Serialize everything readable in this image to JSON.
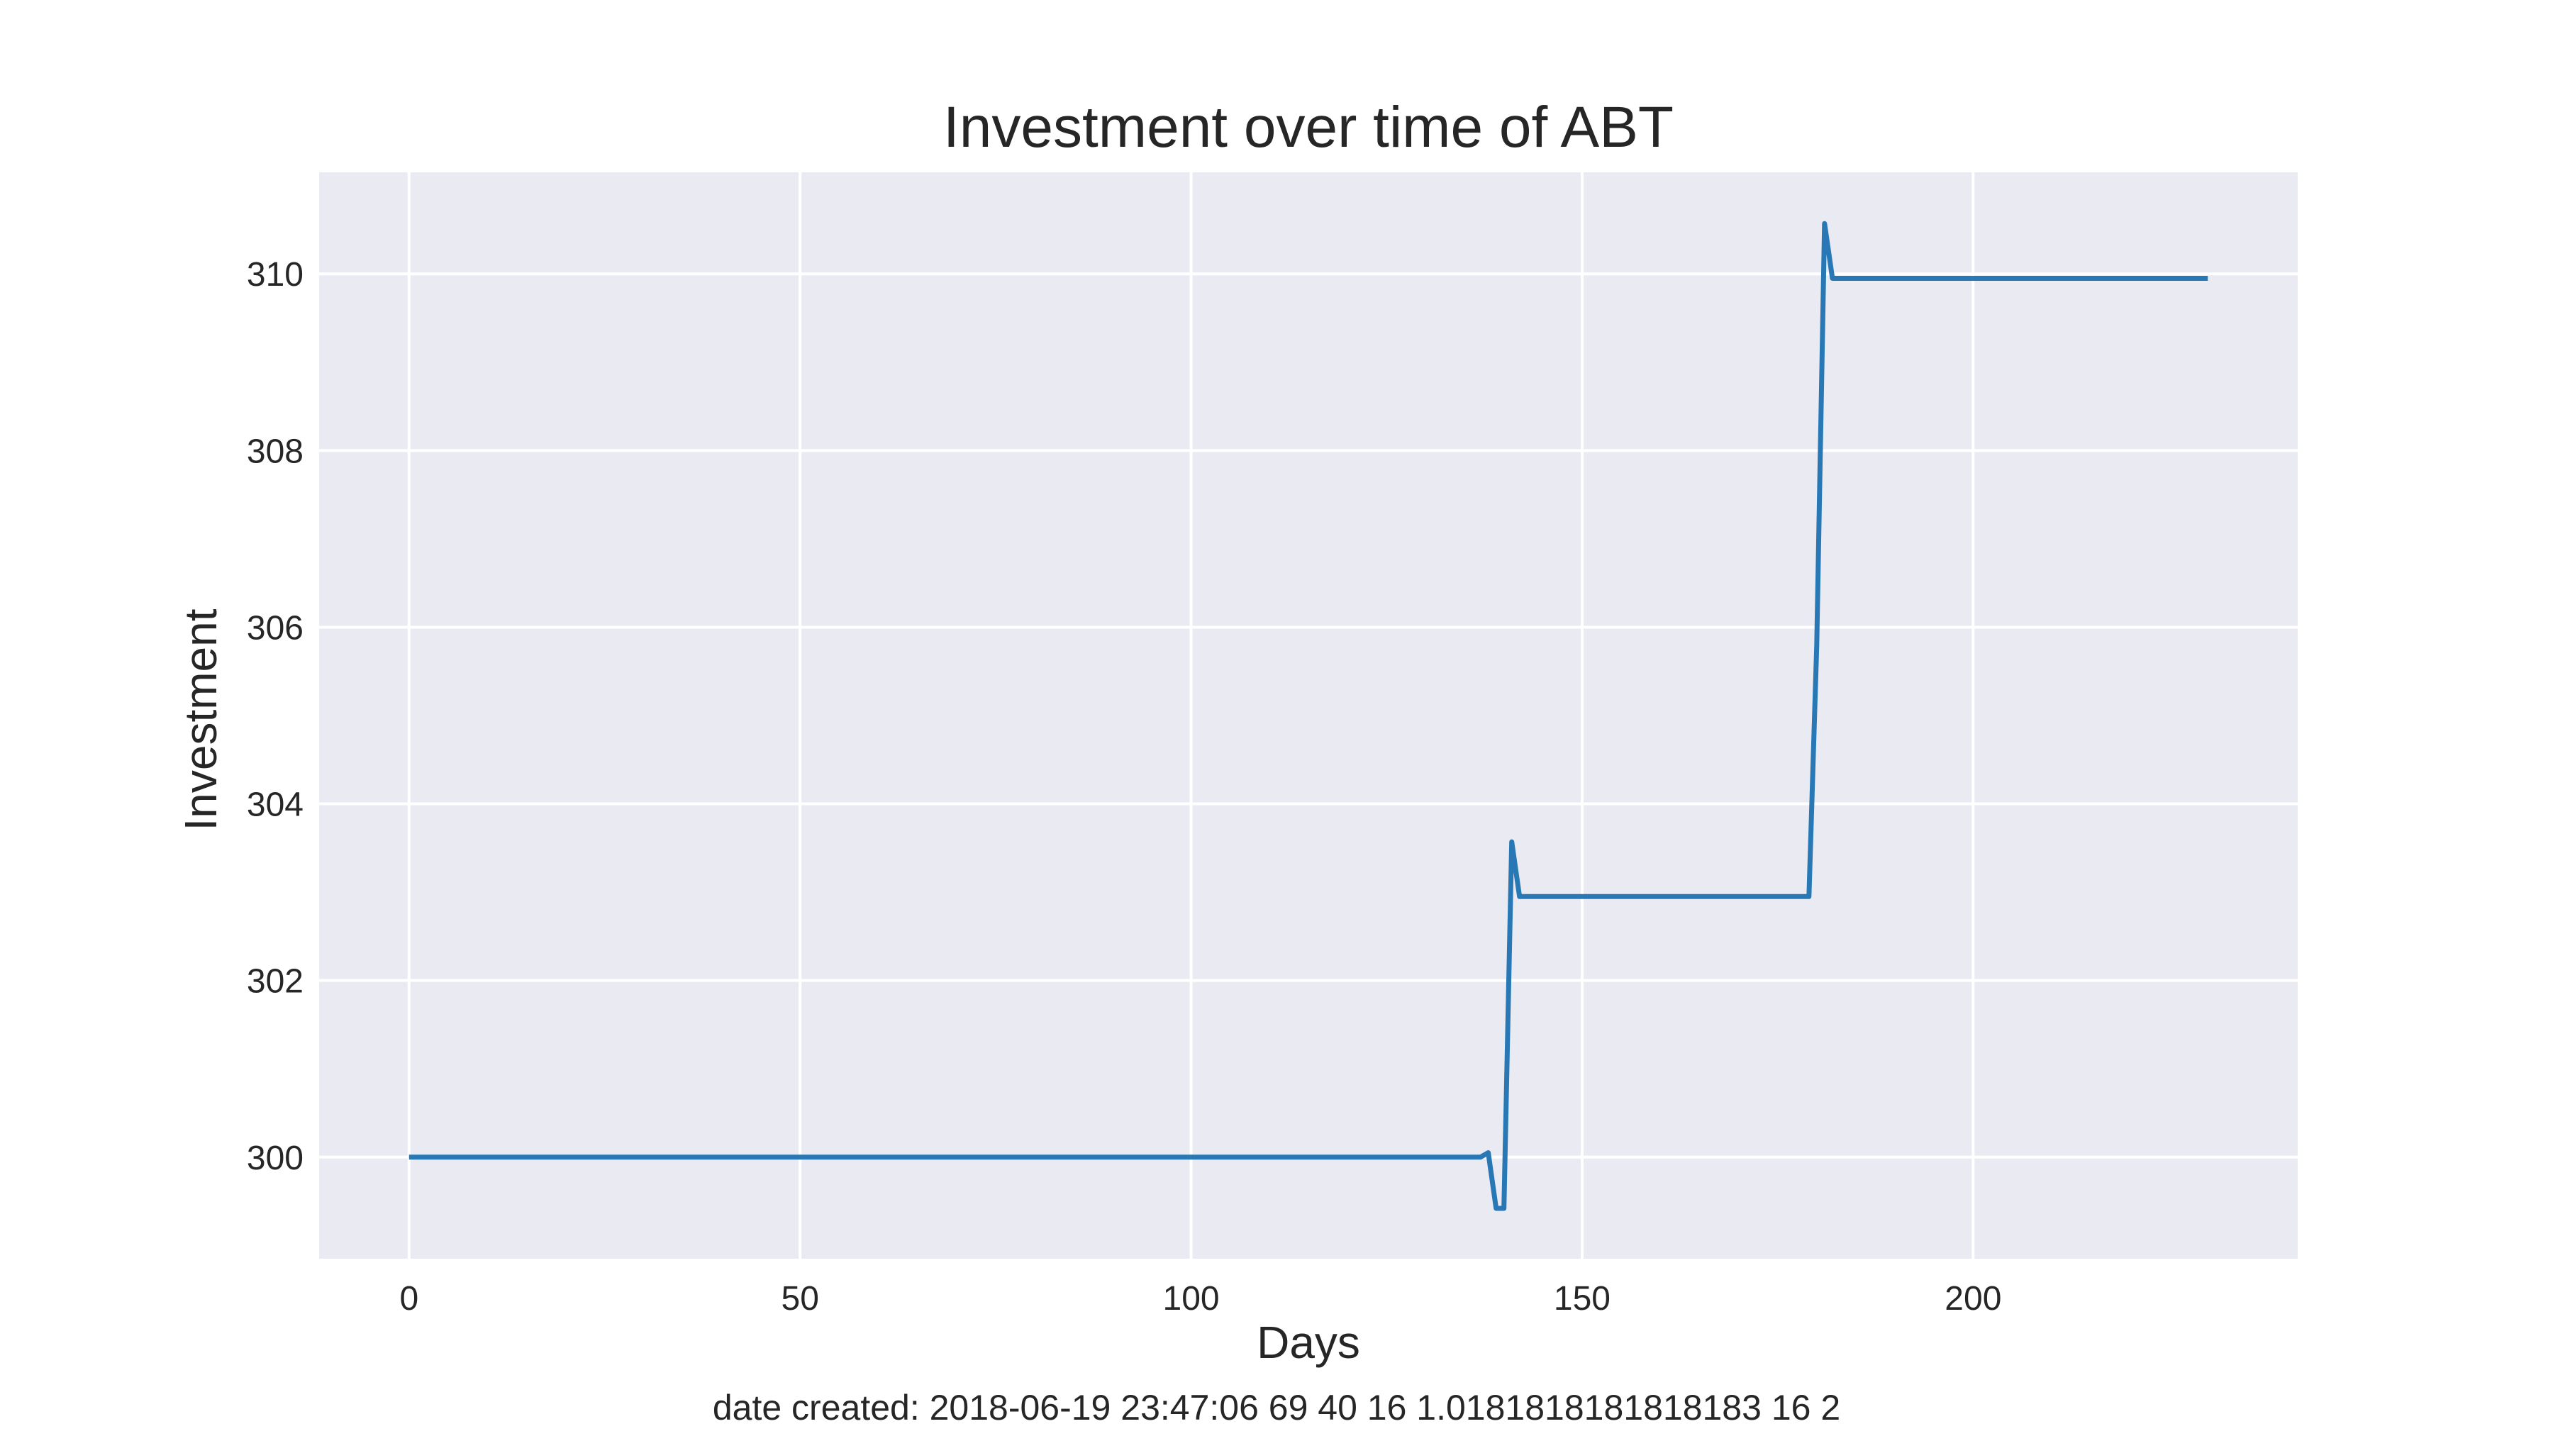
{
  "chart_data": {
    "type": "line",
    "title": "Investment over time of ABT",
    "xlabel": "Days",
    "ylabel": "Investment",
    "xlim": [
      -11.5,
      241.5
    ],
    "ylim": [
      298.85,
      311.15
    ],
    "xticks": [
      0,
      50,
      100,
      150,
      200
    ],
    "yticks": [
      300,
      302,
      304,
      306,
      308,
      310
    ],
    "grid": true,
    "legend": "none",
    "colors": {
      "background": "#EAEAF2",
      "grid": "#FFFFFF",
      "line": "#2878B5",
      "text": "#262626"
    },
    "series": [
      {
        "x": [
          0,
          137,
          138,
          139,
          140,
          141,
          142,
          179,
          180,
          181,
          182,
          230
        ],
        "y": [
          300.0,
          300.0,
          300.05,
          299.42,
          299.42,
          303.57,
          302.95,
          302.95,
          305.8,
          310.57,
          309.95,
          309.95
        ]
      }
    ]
  },
  "caption": "date created: 2018-06-19 23:47:06 69 40 16 1.0181818181818183 16 2"
}
